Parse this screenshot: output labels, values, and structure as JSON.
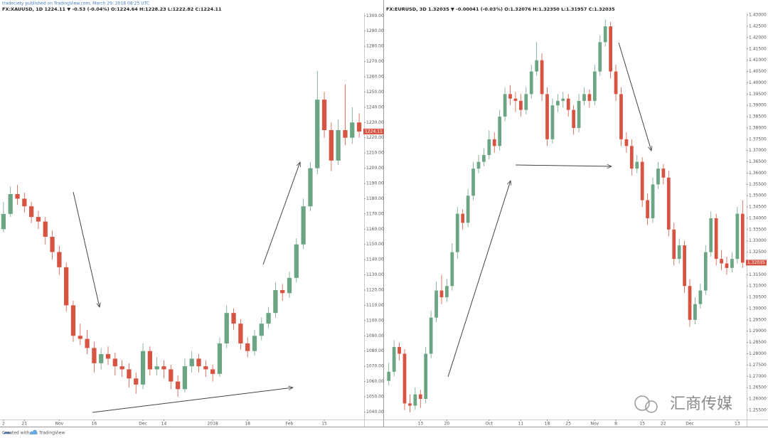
{
  "publisher": "tradeciety published on TradingView.com, March 29, 2018 08:25 UTC",
  "footer": {
    "created_with": "Created with",
    "brand": "TradingView"
  },
  "watermark": "汇商传媒",
  "chart_data": [
    {
      "type": "candlestick",
      "title": "FX:XAUUSD, 1D 1224.11 ▼ -0.53 (-0.04%) O:1224.64 H:1228.23 L:1222.82 C:1224.11",
      "up_color": "#6ba583",
      "down_color": "#d75442",
      "last_price": 1224.11,
      "ylim": [
        1036,
        1302
      ],
      "yticks": [
        {
          "value": 1040,
          "label": "1040.00"
        },
        {
          "value": 1050,
          "label": "1050.00"
        },
        {
          "value": 1060,
          "label": "1060.00"
        },
        {
          "value": 1070,
          "label": "1070.00"
        },
        {
          "value": 1080,
          "label": "1080.00"
        },
        {
          "value": 1090,
          "label": "1090.00"
        },
        {
          "value": 1100,
          "label": "1100.00"
        },
        {
          "value": 1110,
          "label": "1110.00"
        },
        {
          "value": 1120,
          "label": "1120.00"
        },
        {
          "value": 1130,
          "label": "1130.00"
        },
        {
          "value": 1140,
          "label": "1140.00"
        },
        {
          "value": 1150,
          "label": "1150.00"
        },
        {
          "value": 1160,
          "label": "1160.00"
        },
        {
          "value": 1170,
          "label": "1170.00"
        },
        {
          "value": 1180,
          "label": "1180.00"
        },
        {
          "value": 1190,
          "label": "1190.00"
        },
        {
          "value": 1200,
          "label": "1200.00"
        },
        {
          "value": 1210,
          "label": "1210.00"
        },
        {
          "value": 1220,
          "label": "1220.00"
        },
        {
          "value": 1230,
          "label": "1230.00"
        },
        {
          "value": 1240,
          "label": "1240.00"
        },
        {
          "value": 1250,
          "label": "1250.00"
        },
        {
          "value": 1260,
          "label": "1260.00"
        },
        {
          "value": 1270,
          "label": "1270.00"
        },
        {
          "value": 1280,
          "label": "1280.00"
        },
        {
          "value": 1290,
          "label": "1290.00"
        },
        {
          "value": 1300,
          "label": "1300.00"
        }
      ],
      "categories": [
        "2",
        null,
        null,
        "21",
        null,
        null,
        null,
        null,
        "Nov",
        null,
        null,
        null,
        null,
        "16",
        null,
        null,
        null,
        null,
        null,
        null,
        "Dec",
        null,
        null,
        "14",
        null,
        null,
        null,
        null,
        null,
        null,
        "2018",
        null,
        null,
        null,
        null,
        "18",
        null,
        null,
        null,
        null,
        null,
        "Feb",
        null,
        null,
        null,
        null,
        "15",
        null,
        null,
        null,
        null,
        null
      ],
      "ohlc": [
        [
          1160,
          1178,
          1158,
          1170
        ],
        [
          1170,
          1188,
          1168,
          1183
        ],
        [
          1183,
          1189,
          1176,
          1180
        ],
        [
          1180,
          1184,
          1171,
          1175
        ],
        [
          1175,
          1178,
          1164,
          1168
        ],
        [
          1168,
          1172,
          1160,
          1165
        ],
        [
          1165,
          1168,
          1150,
          1155
        ],
        [
          1155,
          1159,
          1140,
          1145
        ],
        [
          1145,
          1149,
          1130,
          1135
        ],
        [
          1135,
          1138,
          1106,
          1110
        ],
        [
          1110,
          1113,
          1086,
          1090
        ],
        [
          1090,
          1098,
          1084,
          1088
        ],
        [
          1088,
          1094,
          1078,
          1082
        ],
        [
          1082,
          1086,
          1066,
          1072
        ],
        [
          1072,
          1082,
          1068,
          1078
        ],
        [
          1078,
          1083,
          1071,
          1075
        ],
        [
          1075,
          1079,
          1064,
          1070
        ],
        [
          1070,
          1074,
          1063,
          1068
        ],
        [
          1068,
          1072,
          1056,
          1062
        ],
        [
          1062,
          1066,
          1052,
          1058
        ],
        [
          1058,
          1085,
          1055,
          1080
        ],
        [
          1080,
          1083,
          1064,
          1068
        ],
        [
          1068,
          1076,
          1064,
          1070
        ],
        [
          1070,
          1074,
          1062,
          1068
        ],
        [
          1068,
          1071,
          1055,
          1060
        ],
        [
          1060,
          1064,
          1050,
          1055
        ],
        [
          1055,
          1075,
          1053,
          1070
        ],
        [
          1070,
          1080,
          1066,
          1075
        ],
        [
          1075,
          1078,
          1066,
          1070
        ],
        [
          1070,
          1074,
          1063,
          1068
        ],
        [
          1068,
          1071,
          1060,
          1065
        ],
        [
          1065,
          1089,
          1063,
          1085
        ],
        [
          1085,
          1110,
          1082,
          1105
        ],
        [
          1105,
          1108,
          1094,
          1098
        ],
        [
          1098,
          1101,
          1081,
          1085
        ],
        [
          1085,
          1089,
          1076,
          1080
        ],
        [
          1080,
          1094,
          1077,
          1090
        ],
        [
          1090,
          1102,
          1087,
          1098
        ],
        [
          1098,
          1109,
          1095,
          1105
        ],
        [
          1105,
          1125,
          1102,
          1120
        ],
        [
          1120,
          1124,
          1113,
          1118
        ],
        [
          1118,
          1132,
          1115,
          1128
        ],
        [
          1128,
          1154,
          1125,
          1150
        ],
        [
          1150,
          1180,
          1147,
          1175
        ],
        [
          1175,
          1204,
          1172,
          1200
        ],
        [
          1200,
          1264,
          1196,
          1245
        ],
        [
          1245,
          1250,
          1220,
          1225
        ],
        [
          1225,
          1230,
          1198,
          1205
        ],
        [
          1205,
          1232,
          1202,
          1225
        ],
        [
          1225,
          1255,
          1215,
          1220
        ],
        [
          1220,
          1240,
          1216,
          1230
        ],
        [
          1230,
          1236,
          1220,
          1224.11
        ]
      ]
    },
    {
      "type": "candlestick",
      "title": "FX:EURUSD, 3D 1.32035 ▼ -0.00041 (-0.03%) O:1.32076 H:1.32350 L:1.31957 C:1.32035",
      "up_color": "#6ba583",
      "down_color": "#d75442",
      "last_price": 1.32035,
      "ylim": [
        1.2515,
        1.431
      ],
      "yticks": [
        {
          "value": 1.255,
          "label": "1.25500"
        },
        {
          "value": 1.26,
          "label": "1.26000"
        },
        {
          "value": 1.265,
          "label": "1.26500"
        },
        {
          "value": 1.27,
          "label": "1.27000"
        },
        {
          "value": 1.275,
          "label": "1.27500"
        },
        {
          "value": 1.28,
          "label": "1.28000"
        },
        {
          "value": 1.285,
          "label": "1.28500"
        },
        {
          "value": 1.29,
          "label": "1.29000"
        },
        {
          "value": 1.295,
          "label": "1.29500"
        },
        {
          "value": 1.3,
          "label": "1.30000"
        },
        {
          "value": 1.305,
          "label": "1.30500"
        },
        {
          "value": 1.31,
          "label": "1.31000"
        },
        {
          "value": 1.315,
          "label": "1.31500"
        },
        {
          "value": 1.32,
          "label": "1.32000"
        },
        {
          "value": 1.325,
          "label": "1.32500"
        },
        {
          "value": 1.33,
          "label": "1.33000"
        },
        {
          "value": 1.335,
          "label": "1.33500"
        },
        {
          "value": 1.34,
          "label": "1.34000"
        },
        {
          "value": 1.345,
          "label": "1.34500"
        },
        {
          "value": 1.35,
          "label": "1.35000"
        },
        {
          "value": 1.355,
          "label": "1.35500"
        },
        {
          "value": 1.36,
          "label": "1.36000"
        },
        {
          "value": 1.365,
          "label": "1.36500"
        },
        {
          "value": 1.37,
          "label": "1.37000"
        },
        {
          "value": 1.375,
          "label": "1.37500"
        },
        {
          "value": 1.38,
          "label": "1.38000"
        },
        {
          "value": 1.385,
          "label": "1.38500"
        },
        {
          "value": 1.39,
          "label": "1.39000"
        },
        {
          "value": 1.395,
          "label": "1.39500"
        },
        {
          "value": 1.4,
          "label": "1.40000"
        },
        {
          "value": 1.405,
          "label": "1.40500"
        },
        {
          "value": 1.41,
          "label": "1.41000"
        },
        {
          "value": 1.415,
          "label": "1.41500"
        },
        {
          "value": 1.42,
          "label": "1.42000"
        },
        {
          "value": 1.425,
          "label": "1.42500"
        },
        {
          "value": 1.43,
          "label": "1.43000"
        }
      ],
      "categories": [
        null,
        null,
        null,
        null,
        null,
        null,
        "13",
        null,
        null,
        null,
        null,
        "20",
        null,
        null,
        null,
        null,
        null,
        null,
        null,
        "Oct",
        null,
        null,
        null,
        null,
        null,
        "11",
        null,
        null,
        null,
        null,
        "18",
        null,
        null,
        null,
        "25",
        null,
        null,
        null,
        null,
        "Nov",
        null,
        null,
        null,
        "8",
        null,
        null,
        null,
        null,
        "15",
        null,
        null,
        null,
        "22",
        null,
        null,
        null,
        null,
        "Dec",
        null,
        null,
        null,
        null,
        null,
        null,
        null,
        null,
        "13",
        null
      ],
      "ohlc": [
        [
          1.268,
          1.276,
          1.266,
          1.272
        ],
        [
          1.272,
          1.286,
          1.27,
          1.283
        ],
        [
          1.283,
          1.285,
          1.277,
          1.28
        ],
        [
          1.28,
          1.282,
          1.255,
          1.258
        ],
        [
          1.258,
          1.262,
          1.254,
          1.257
        ],
        [
          1.257,
          1.265,
          1.255,
          1.262
        ],
        [
          1.262,
          1.264,
          1.256,
          1.26
        ],
        [
          1.26,
          1.283,
          1.258,
          1.28
        ],
        [
          1.28,
          1.299,
          1.278,
          1.296
        ],
        [
          1.296,
          1.312,
          1.294,
          1.308
        ],
        [
          1.308,
          1.315,
          1.302,
          1.305
        ],
        [
          1.305,
          1.313,
          1.303,
          1.31
        ],
        [
          1.31,
          1.329,
          1.308,
          1.325
        ],
        [
          1.325,
          1.345,
          1.322,
          1.342
        ],
        [
          1.342,
          1.344,
          1.335,
          1.338
        ],
        [
          1.338,
          1.353,
          1.336,
          1.35
        ],
        [
          1.35,
          1.365,
          1.348,
          1.362
        ],
        [
          1.362,
          1.368,
          1.36,
          1.365
        ],
        [
          1.365,
          1.371,
          1.363,
          1.368
        ],
        [
          1.368,
          1.379,
          1.366,
          1.375
        ],
        [
          1.375,
          1.378,
          1.369,
          1.372
        ],
        [
          1.372,
          1.388,
          1.37,
          1.385
        ],
        [
          1.385,
          1.398,
          1.383,
          1.395
        ],
        [
          1.395,
          1.399,
          1.39,
          1.393
        ],
        [
          1.393,
          1.396,
          1.387,
          1.392
        ],
        [
          1.392,
          1.395,
          1.385,
          1.388
        ],
        [
          1.388,
          1.398,
          1.386,
          1.395
        ],
        [
          1.395,
          1.408,
          1.393,
          1.405
        ],
        [
          1.405,
          1.418,
          1.403,
          1.41
        ],
        [
          1.41,
          1.413,
          1.392,
          1.395
        ],
        [
          1.395,
          1.398,
          1.372,
          1.375
        ],
        [
          1.375,
          1.393,
          1.373,
          1.39
        ],
        [
          1.39,
          1.395,
          1.387,
          1.392
        ],
        [
          1.392,
          1.396,
          1.389,
          1.393
        ],
        [
          1.393,
          1.395,
          1.385,
          1.388
        ],
        [
          1.388,
          1.39,
          1.377,
          1.38
        ],
        [
          1.38,
          1.395,
          1.378,
          1.392
        ],
        [
          1.392,
          1.398,
          1.39,
          1.395
        ],
        [
          1.395,
          1.397,
          1.389,
          1.392
        ],
        [
          1.392,
          1.408,
          1.39,
          1.405
        ],
        [
          1.405,
          1.421,
          1.403,
          1.418
        ],
        [
          1.418,
          1.428,
          1.416,
          1.425
        ],
        [
          1.425,
          1.427,
          1.402,
          1.405
        ],
        [
          1.405,
          1.408,
          1.392,
          1.395
        ],
        [
          1.395,
          1.398,
          1.372,
          1.375
        ],
        [
          1.375,
          1.378,
          1.369,
          1.372
        ],
        [
          1.372,
          1.375,
          1.359,
          1.362
        ],
        [
          1.362,
          1.368,
          1.36,
          1.365
        ],
        [
          1.365,
          1.367,
          1.345,
          1.348
        ],
        [
          1.348,
          1.351,
          1.337,
          1.34
        ],
        [
          1.34,
          1.358,
          1.338,
          1.355
        ],
        [
          1.355,
          1.365,
          1.353,
          1.362
        ],
        [
          1.362,
          1.364,
          1.355,
          1.358
        ],
        [
          1.358,
          1.361,
          1.332,
          1.335
        ],
        [
          1.335,
          1.338,
          1.319,
          1.322
        ],
        [
          1.322,
          1.331,
          1.32,
          1.328
        ],
        [
          1.328,
          1.33,
          1.307,
          1.31
        ],
        [
          1.31,
          1.313,
          1.292,
          1.295
        ],
        [
          1.295,
          1.305,
          1.293,
          1.302
        ],
        [
          1.302,
          1.311,
          1.3,
          1.308
        ],
        [
          1.308,
          1.328,
          1.306,
          1.325
        ],
        [
          1.325,
          1.343,
          1.323,
          1.34
        ],
        [
          1.34,
          1.342,
          1.319,
          1.322
        ],
        [
          1.322,
          1.326,
          1.317,
          1.32
        ],
        [
          1.32,
          1.323,
          1.315,
          1.318
        ],
        [
          1.318,
          1.325,
          1.316,
          1.322
        ],
        [
          1.322,
          1.345,
          1.32,
          1.342
        ],
        [
          1.342,
          1.348,
          1.318,
          1.32035
        ]
      ]
    }
  ]
}
